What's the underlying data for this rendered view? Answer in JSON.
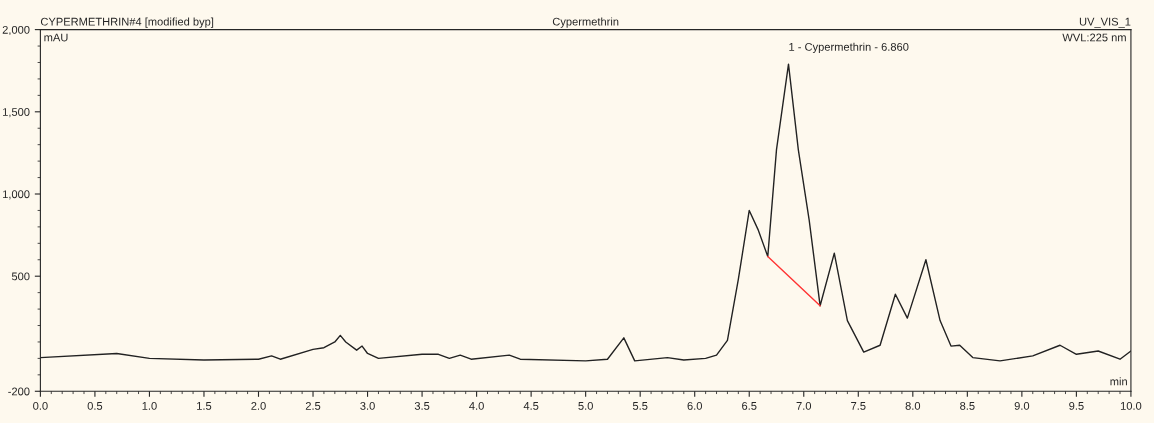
{
  "chart_data": {
    "type": "line",
    "title": "Cypermethrin",
    "xlabel": "min",
    "ylabel": "mAU",
    "annotations": [
      "CYPERMETHRIN#4 [modified byp]",
      "UV_VIS_1",
      "WVL:225 nm",
      {
        "text": "1 - Cypermethrin - 6.860",
        "x": 6.86,
        "y": 1790
      }
    ],
    "series": [
      {
        "color": "#222222",
        "x": [
          0,
          0.7,
          1.0,
          1.5,
          2.0,
          2.12,
          2.2,
          2.5,
          2.6,
          2.7,
          2.75,
          2.8,
          2.9,
          2.95,
          3.0,
          3.1,
          3.5,
          3.65,
          3.75,
          3.85,
          3.95,
          4.3,
          4.4,
          5.0,
          5.2,
          5.35,
          5.45,
          5.75,
          5.9,
          6.1,
          6.2,
          6.3,
          6.4,
          6.5,
          6.58,
          6.67,
          6.75,
          6.86,
          6.95,
          7.05,
          7.15,
          7.28,
          7.4,
          7.55,
          7.7,
          7.84,
          7.95,
          8.12,
          8.25,
          8.35,
          8.43,
          8.55,
          8.8,
          9.1,
          9.35,
          9.5,
          9.7,
          9.9,
          10.0
        ],
        "values": [
          5,
          30,
          0,
          -10,
          -5,
          15,
          -5,
          55,
          65,
          100,
          140,
          100,
          50,
          75,
          30,
          0,
          25,
          25,
          0,
          20,
          -5,
          20,
          -5,
          -15,
          -5,
          125,
          -15,
          5,
          -10,
          0,
          20,
          110,
          480,
          900,
          785,
          620,
          1270,
          1790,
          1270,
          840,
          320,
          640,
          230,
          38,
          80,
          390,
          245,
          600,
          230,
          75,
          80,
          5,
          -15,
          15,
          80,
          25,
          45,
          -5,
          45
        ]
      },
      {
        "color": "#ff3333",
        "x": [
          6.67,
          7.15
        ],
        "values": [
          620,
          320
        ]
      }
    ],
    "xlim": [
      0,
      10
    ],
    "ylim": [
      -200,
      2000
    ],
    "xticks": [
      {
        "value": 0,
        "label": "0.0"
      },
      0.5,
      {
        "value": 1,
        "label": "1.0"
      },
      1.5,
      {
        "value": 2,
        "label": "2.0"
      },
      2.5,
      {
        "value": 3,
        "label": "3.0"
      },
      3.5,
      {
        "value": 4,
        "label": "4.0"
      },
      4.5,
      {
        "value": 5,
        "label": "5.0"
      },
      5.5,
      {
        "value": 6,
        "label": "6.0"
      },
      6.5,
      {
        "value": 7,
        "label": "7.0"
      },
      7.5,
      {
        "value": 8,
        "label": "8.0"
      },
      8.5,
      {
        "value": 9,
        "label": "9.0"
      },
      9.5,
      {
        "value": 10,
        "label": "10.0"
      }
    ],
    "yticks": [
      -200,
      500,
      {
        "value": 1000,
        "label": "1,000"
      },
      {
        "value": 1500,
        "label": "1,500"
      },
      {
        "value": 2000,
        "label": "2,000"
      }
    ],
    "grid": false,
    "legend": false,
    "marker": "none",
    "line_style": "solid"
  }
}
